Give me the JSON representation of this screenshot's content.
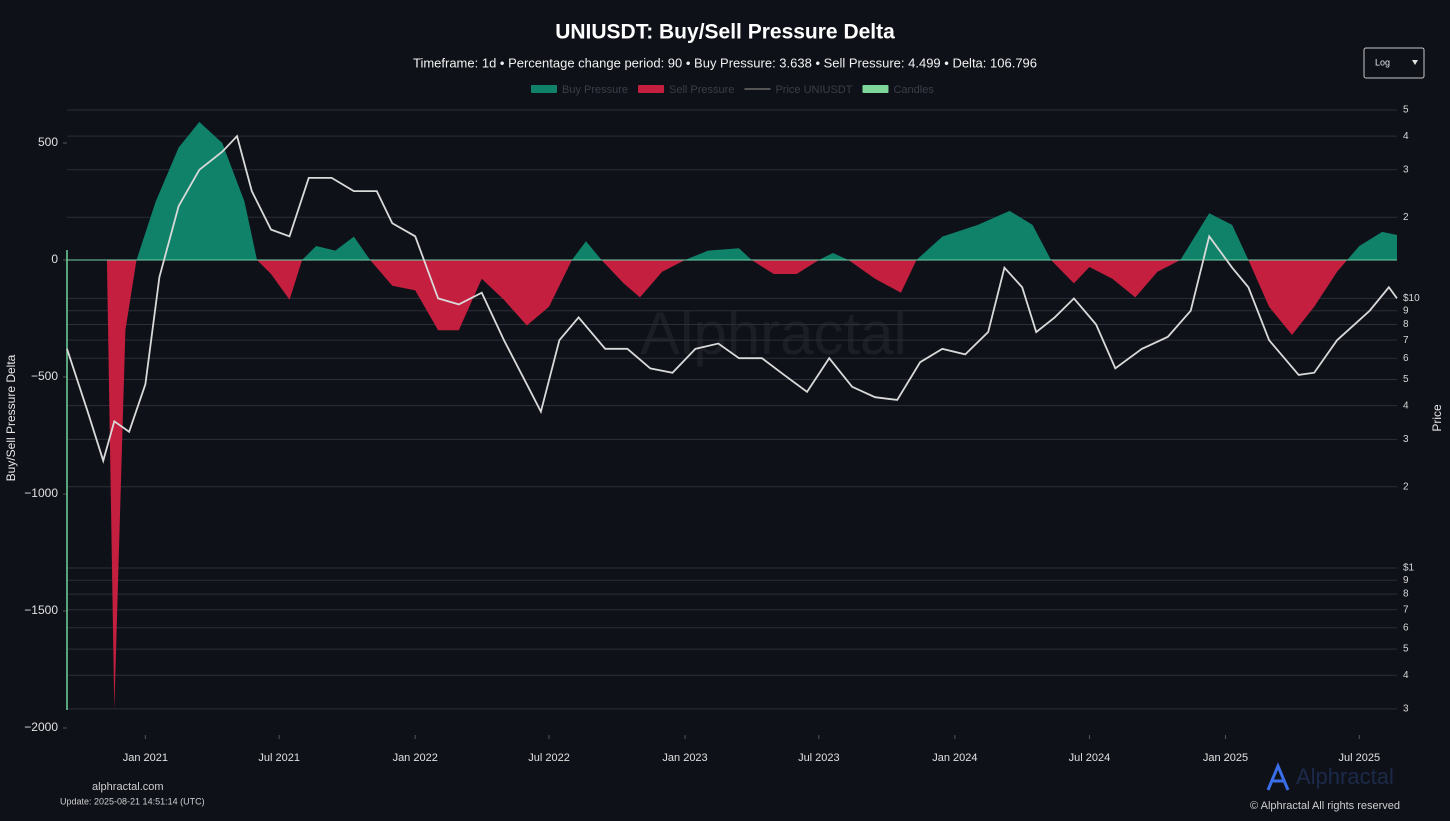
{
  "chart_data": {
    "type": "area_line",
    "title": "UNIUSDT: Buy/Sell Pressure Delta",
    "subtitle": "Timeframe: 1d  •  Percentage change period: 90  •  Buy Pressure: 3.638 • Sell Pressure: 4.499 • Delta: 106.796",
    "y_label": "Buy/Sell Pressure Delta",
    "y2_label": "Price",
    "scale_selector": "Log",
    "y2_log": true,
    "legend": [
      {
        "name": "Buy Pressure",
        "color": "#10826a"
      },
      {
        "name": "Sell Pressure",
        "color": "#c41f3f"
      },
      {
        "name": "Price UNIUSDT",
        "color": "#555555"
      },
      {
        "name": "Candles",
        "color": "#7fd69a"
      }
    ],
    "footer": {
      "site": "alphractal.com",
      "update": "Update: 2025-08-21 14:51:14 (UTC)",
      "brand": "Alphractal",
      "copyright": "© Alphractal All rights reserved"
    },
    "xlim": [
      "2020-09-17",
      "2025-08-21"
    ],
    "xticks": [
      {
        "value": "2021-01-01",
        "label": "Jan 2021"
      },
      {
        "value": "2021-07-01",
        "label": "Jul 2021"
      },
      {
        "value": "2022-01-01",
        "label": "Jan 2022"
      },
      {
        "value": "2022-07-01",
        "label": "Jul 2022"
      },
      {
        "value": "2023-01-01",
        "label": "Jan 2023"
      },
      {
        "value": "2023-07-01",
        "label": "Jul 2023"
      },
      {
        "value": "2024-01-01",
        "label": "Jan 2024"
      },
      {
        "value": "2024-07-01",
        "label": "Jul 2024"
      },
      {
        "value": "2025-01-01",
        "label": "Jan 2025"
      },
      {
        "value": "2025-07-01",
        "label": "Jul 2025"
      }
    ],
    "ylim": [
      -2030,
      641
    ],
    "yticks": [
      500,
      0,
      {
        "value": -500,
        "label": "−500"
      },
      {
        "value": -1000,
        "label": "−1000"
      },
      {
        "value": -1500,
        "label": "−1500"
      },
      {
        "value": -2000,
        "label": "−2000"
      }
    ],
    "y2lim": [
      0.24,
      50
    ],
    "y2ticks": [
      {
        "value": 50,
        "label": "5"
      },
      {
        "value": 40,
        "label": "4"
      },
      {
        "value": 30,
        "label": "3"
      },
      {
        "value": 20,
        "label": "2"
      },
      {
        "value": 10,
        "label": "$10"
      },
      9,
      8,
      7,
      6,
      5,
      4,
      3,
      2,
      {
        "value": 1,
        "label": "$1"
      },
      {
        "value": 0.9,
        "label": "9"
      },
      {
        "value": 0.8,
        "label": "8"
      },
      {
        "value": 0.7,
        "label": "7"
      },
      {
        "value": 0.6,
        "label": "6"
      },
      {
        "value": 0.5,
        "label": "5"
      },
      {
        "value": 0.4,
        "label": "4"
      },
      {
        "value": 0.3,
        "label": "3"
      }
    ],
    "grid": true,
    "series": [
      {
        "name": "Buy/Sell Pressure Delta",
        "colors": {
          "positive": "#10826a",
          "negative": "#c41f3f"
        },
        "x": [
          "2020-09-17",
          "2020-11-10",
          "2020-11-20",
          "2020-12-05",
          "2020-12-20",
          "2021-01-15",
          "2021-02-15",
          "2021-03-15",
          "2021-04-15",
          "2021-05-15",
          "2021-06-01",
          "2021-06-20",
          "2021-07-15",
          "2021-08-01",
          "2021-08-20",
          "2021-09-15",
          "2021-10-10",
          "2021-11-01",
          "2021-12-01",
          "2022-01-01",
          "2022-02-01",
          "2022-03-01",
          "2022-04-01",
          "2022-05-01",
          "2022-06-01",
          "2022-07-01",
          "2022-08-01",
          "2022-08-20",
          "2022-09-10",
          "2022-10-10",
          "2022-11-01",
          "2022-12-01",
          "2023-01-01",
          "2023-02-01",
          "2023-03-15",
          "2023-04-01",
          "2023-05-01",
          "2023-06-01",
          "2023-07-01",
          "2023-07-20",
          "2023-08-10",
          "2023-09-15",
          "2023-10-20",
          "2023-11-10",
          "2023-12-15",
          "2024-02-01",
          "2024-03-15",
          "2024-04-15",
          "2024-05-10",
          "2024-06-10",
          "2024-07-01",
          "2024-08-01",
          "2024-09-01",
          "2024-10-01",
          "2024-11-01",
          "2024-12-10",
          "2025-01-10",
          "2025-02-01",
          "2025-03-01",
          "2025-04-01",
          "2025-05-01",
          "2025-06-01",
          "2025-07-01",
          "2025-08-01",
          "2025-08-21"
        ],
        "values": [
          0,
          0,
          -1920,
          -300,
          0,
          250,
          480,
          590,
          500,
          250,
          0,
          -60,
          -170,
          0,
          60,
          40,
          100,
          0,
          -110,
          -130,
          -300,
          -300,
          -80,
          -170,
          -280,
          -200,
          0,
          80,
          0,
          -100,
          -160,
          -50,
          0,
          40,
          50,
          0,
          -60,
          -60,
          0,
          30,
          0,
          -80,
          -140,
          0,
          100,
          150,
          210,
          150,
          0,
          -100,
          -30,
          -80,
          -160,
          -50,
          0,
          200,
          150,
          0,
          -200,
          -320,
          -200,
          -50,
          60,
          120,
          107
        ]
      },
      {
        "name": "Price UNIUSDT",
        "color": "#d9d9d9",
        "axis": "y2",
        "x": [
          "2020-09-17",
          "2020-10-15",
          "2020-11-05",
          "2020-11-20",
          "2020-12-10",
          "2021-01-01",
          "2021-01-20",
          "2021-02-15",
          "2021-03-15",
          "2021-04-15",
          "2021-05-05",
          "2021-05-25",
          "2021-06-20",
          "2021-07-15",
          "2021-08-10",
          "2021-09-10",
          "2021-10-10",
          "2021-11-10",
          "2021-12-01",
          "2022-01-01",
          "2022-02-01",
          "2022-03-01",
          "2022-04-01",
          "2022-05-01",
          "2022-06-01",
          "2022-06-20",
          "2022-07-15",
          "2022-08-10",
          "2022-09-15",
          "2022-10-15",
          "2022-11-15",
          "2022-12-15",
          "2023-01-15",
          "2023-02-15",
          "2023-03-15",
          "2023-04-15",
          "2023-05-15",
          "2023-06-15",
          "2023-07-15",
          "2023-08-15",
          "2023-09-15",
          "2023-10-15",
          "2023-11-15",
          "2023-12-15",
          "2024-01-15",
          "2024-02-15",
          "2024-03-08",
          "2024-04-01",
          "2024-04-20",
          "2024-05-15",
          "2024-06-10",
          "2024-07-10",
          "2024-08-05",
          "2024-09-10",
          "2024-10-15",
          "2024-11-15",
          "2024-12-10",
          "2025-01-10",
          "2025-02-01",
          "2025-03-01",
          "2025-04-10",
          "2025-05-01",
          "2025-06-01",
          "2025-07-15",
          "2025-08-10",
          "2025-08-21"
        ],
        "values": [
          6.5,
          3.8,
          2.5,
          3.5,
          3.2,
          4.8,
          12,
          22,
          30,
          35,
          40,
          25,
          18,
          17,
          28,
          28,
          25,
          25,
          19,
          17,
          10,
          9.5,
          10.5,
          7,
          4.8,
          3.8,
          7,
          8.5,
          6.5,
          6.5,
          5.5,
          5.3,
          6.5,
          6.8,
          6,
          6,
          5.2,
          4.5,
          6,
          4.7,
          4.3,
          4.2,
          5.8,
          6.5,
          6.2,
          7.5,
          13,
          11,
          7.5,
          8.5,
          10,
          8,
          5.5,
          6.5,
          7.2,
          9,
          17,
          13,
          11,
          7,
          5.2,
          5.3,
          7,
          9,
          11,
          10
        ]
      }
    ]
  }
}
